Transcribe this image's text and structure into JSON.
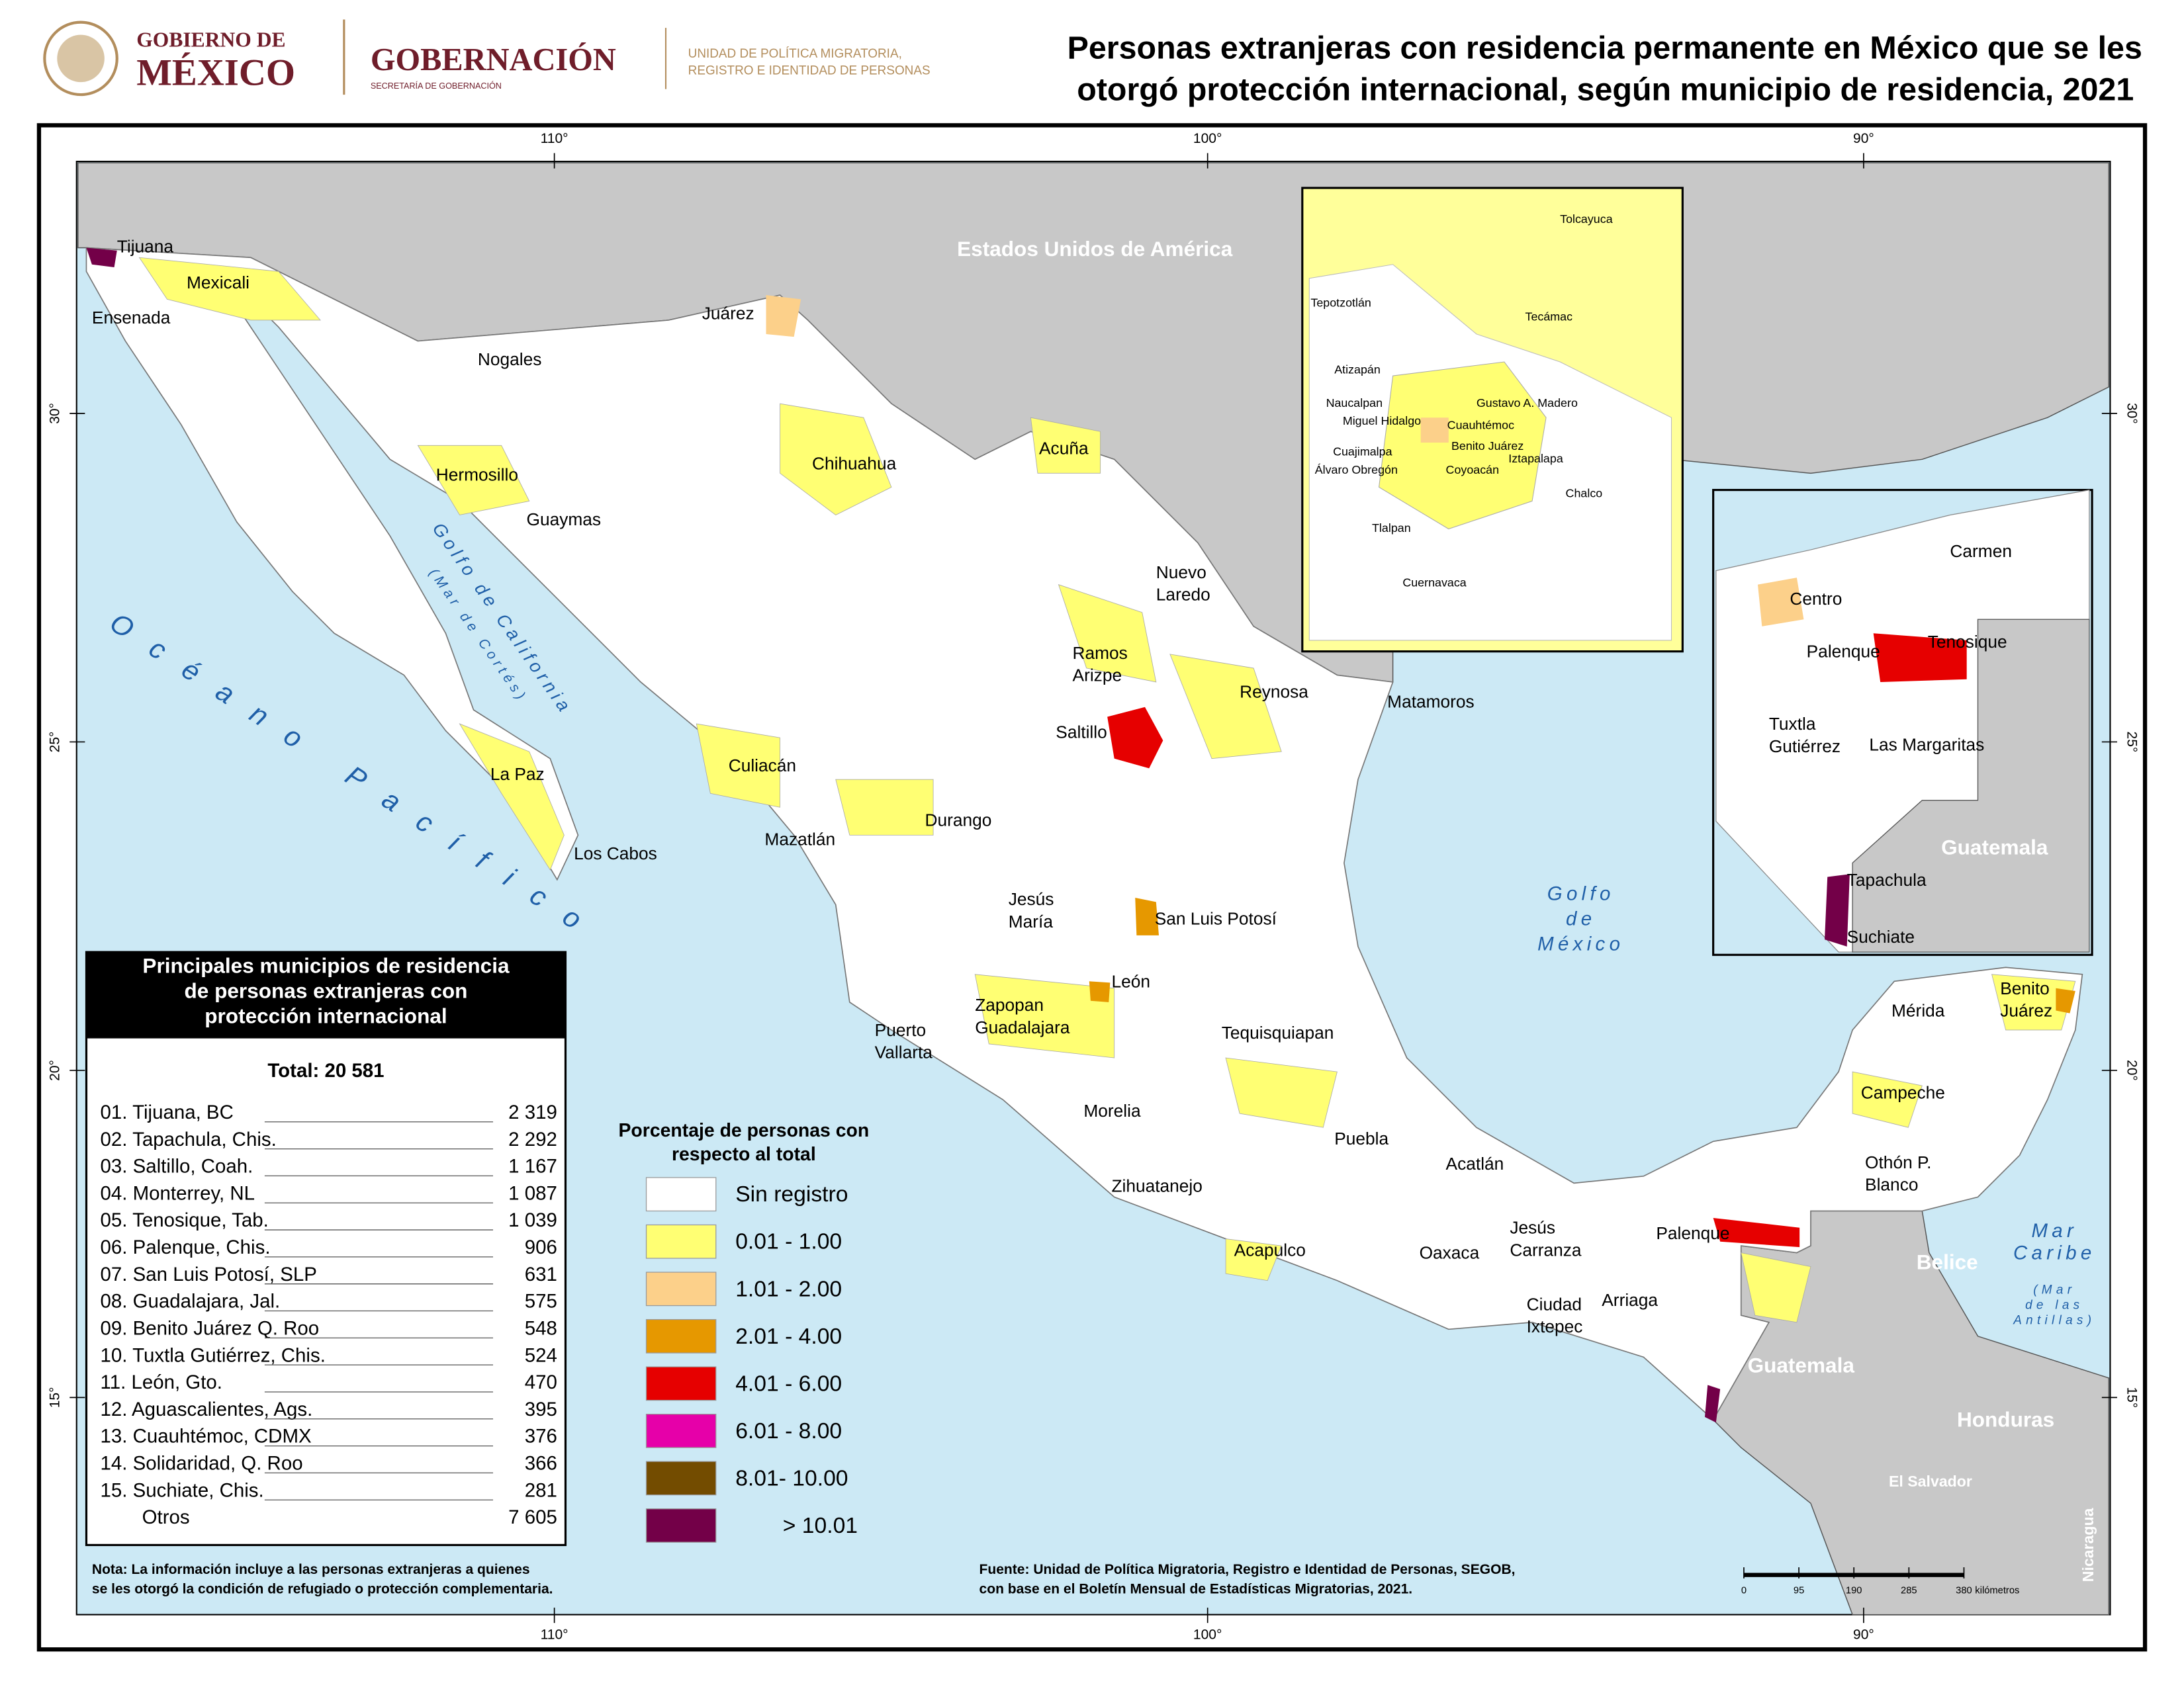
{
  "header": {
    "gobierno": "GOBIERNO DE",
    "mexico": "MÉXICO",
    "gobernacion": "GOBERNACIÓN",
    "secretaria": "SECRETARÍA DE GOBERNACIÓN",
    "unidad": [
      "UNIDAD DE POLÍTICA MIGRATORIA,",
      "REGISTRO E IDENTIDAD DE PERSONAS"
    ]
  },
  "title": [
    "Personas extranjeras con residencia permanente en México que se les",
    "otorgó protección internacional, según municipio de residencia, 2021"
  ],
  "graticule": {
    "longitudes": [
      "110°",
      "100°",
      "90°"
    ],
    "latitudes": [
      "30°",
      "25°",
      "20°",
      "15°"
    ]
  },
  "places": [
    [
      "Tijuana"
    ],
    [
      "Mexicali"
    ],
    [
      "Ensenada"
    ],
    [
      "Nogales"
    ],
    [
      "Juárez"
    ],
    [
      "Hermosillo"
    ],
    [
      "Guaymas"
    ],
    [
      "Chihuahua"
    ],
    [
      "Acuña"
    ],
    [
      "Nuevo",
      "Laredo"
    ],
    [
      "Ramos",
      "Arizpe"
    ],
    [
      "Reynosa"
    ],
    [
      "Matamoros"
    ],
    [
      "Saltillo"
    ],
    [
      "Culiacán"
    ],
    [
      "La Paz"
    ],
    [
      "Los Cabos"
    ],
    [
      "Mazatlán"
    ],
    [
      "Durango"
    ],
    [
      "Jesús",
      "María"
    ],
    [
      "San Luis Potosí"
    ],
    [
      "León"
    ],
    [
      "Zapopan",
      "Guadalajara"
    ],
    [
      "Puerto",
      "Vallarta"
    ],
    [
      "Tequisquiapan"
    ],
    [
      "Morelia"
    ],
    [
      "Puebla"
    ],
    [
      "Acatlán"
    ],
    [
      "Zihuatanejo"
    ],
    [
      "Jesús",
      "Carranza"
    ],
    [
      "Acapulco"
    ],
    [
      "Oaxaca"
    ],
    [
      "Palenque"
    ],
    [
      "Arriaga"
    ],
    [
      "Ciudad",
      "Ixtepec"
    ],
    [
      "Mérida"
    ],
    [
      "Benito",
      "Juárez"
    ],
    [
      "Campeche"
    ],
    [
      "Othón P.",
      "Blanco"
    ],
    [
      "Tolcayuca"
    ],
    [
      "Tepotzotlán"
    ],
    [
      "Tecámac"
    ],
    [
      "Atizapán"
    ],
    [
      "Naucalpan"
    ],
    [
      "Gustavo A. Madero"
    ],
    [
      "Miguel Hidalgo"
    ],
    [
      "Cuauhtémoc"
    ],
    [
      "Benito Juárez"
    ],
    [
      "Cuajimalpa"
    ],
    [
      "Iztapalapa"
    ],
    [
      "Álvaro Obregón"
    ],
    [
      "Coyoacán"
    ],
    [
      "Chalco"
    ],
    [
      "Tlalpan"
    ],
    [
      "Cuernavaca"
    ],
    [
      "Carmen"
    ],
    [
      "Centro"
    ],
    [
      "Palenque"
    ],
    [
      "Tenosique"
    ],
    [
      "Tuxtla",
      "Gutiérrez"
    ],
    [
      "Las Margaritas"
    ],
    [
      "Tapachula"
    ],
    [
      "Suchiate"
    ]
  ],
  "countries": [
    "Estados Unidos de América",
    "Guatemala",
    "Guatemala",
    "Belice",
    "Honduras",
    "El Salvador",
    "Nicaragua"
  ],
  "water": {
    "pacifico": "Océano Pacífico",
    "california": [
      "Golfo de California",
      "(Mar de Cortés)"
    ],
    "golfo_mexico": [
      "Golfo",
      "de",
      "México"
    ],
    "caribe": [
      "Mar",
      "Caribe",
      "(Mar",
      "de las",
      "Antillas)"
    ]
  },
  "table": {
    "title": [
      "Principales municipios de residencia",
      "de personas extranjeras con",
      "protección internacional"
    ],
    "total": "Total: 20 581",
    "rows": [
      [
        "01. Tijuana, BC",
        "2 319"
      ],
      [
        "02. Tapachula, Chis.",
        "2 292"
      ],
      [
        "03. Saltillo, Coah.",
        "1 167"
      ],
      [
        "04. Monterrey, NL",
        "1 087"
      ],
      [
        "05. Tenosique, Tab.",
        "1 039"
      ],
      [
        "06. Palenque, Chis.",
        "906"
      ],
      [
        "07. San Luis Potosí, SLP",
        "631"
      ],
      [
        "08. Guadalajara, Jal.",
        "575"
      ],
      [
        "09. Benito Juárez Q. Roo",
        "548"
      ],
      [
        "10. Tuxtla Gutiérrez, Chis.",
        "524"
      ],
      [
        "11. León, Gto.",
        "470"
      ],
      [
        "12. Aguascalientes, Ags.",
        "395"
      ],
      [
        "13. Cuauhtémoc, CDMX",
        "376"
      ],
      [
        "14. Solidaridad, Q. Roo",
        "366"
      ],
      [
        "15. Suchiate, Chis.",
        "281"
      ],
      [
        "Otros",
        "7 605"
      ]
    ]
  },
  "legend": {
    "title": [
      "Porcentaje de personas con",
      "respecto al total"
    ],
    "items": [
      {
        "label": "Sin registro",
        "color": "#ffffff"
      },
      {
        "label": "0.01 - 1.00",
        "color": "#ffff73"
      },
      {
        "label": "1.01 - 2.00",
        "color": "#fcd08a"
      },
      {
        "label": "2.01 - 4.00",
        "color": "#e69800"
      },
      {
        "label": "4.01 - 6.00",
        "color": "#e60000"
      },
      {
        "label": "6.01 - 8.00",
        "color": "#e600a9"
      },
      {
        "label": "8.01- 10.00",
        "color": "#734c00"
      },
      {
        "label": "> 10.01",
        "color": "#730048"
      }
    ]
  },
  "note": [
    "Nota: La información incluye a las personas extranjeras a quienes",
    "se les otorgó la condición de refugiado o protección complementaria."
  ],
  "source": [
    "Fuente: Unidad de Política Migratoria, Registro e Identidad de Personas, SEGOB,",
    "con base en el Boletín Mensual de Estadísticas Migratorias, 2021."
  ],
  "scale": {
    "ticks": [
      "0",
      "95",
      "190",
      "285",
      "380"
    ],
    "unit": "kilómetros"
  }
}
